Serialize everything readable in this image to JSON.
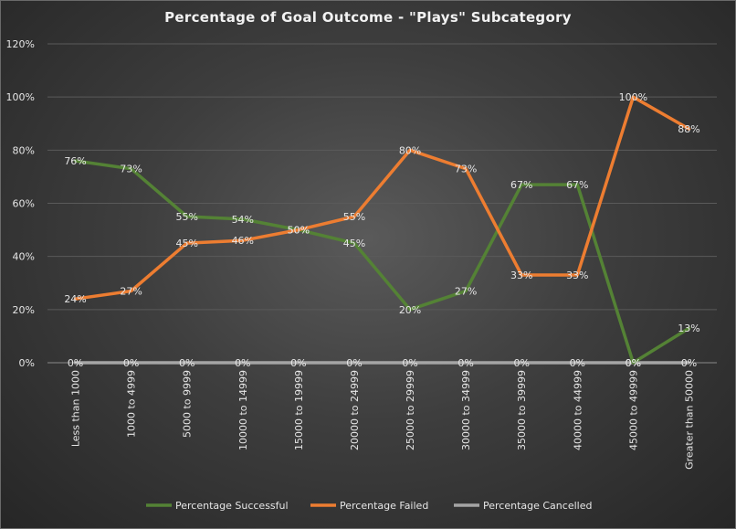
{
  "chart_data": {
    "type": "line",
    "title": "Percentage of Goal Outcome - \"Plays\" Subcategory",
    "xlabel": "",
    "ylabel": "",
    "ylim": [
      0,
      120
    ],
    "yticks": [
      "0%",
      "20%",
      "40%",
      "60%",
      "80%",
      "100%",
      "120%"
    ],
    "categories": [
      "Less than 1000",
      "1000 to 4999",
      "5000 to 9999",
      "10000 to 14999",
      "15000 to 19999",
      "20000 to 24999",
      "25000 to 29999",
      "30000 to 34999",
      "35000 to 39999",
      "40000 to 44999",
      "45000 to 49999",
      "Greater than 50000"
    ],
    "series": [
      {
        "name": "Percentage Successful",
        "color": "#548235",
        "values": [
          76,
          73,
          55,
          54,
          50,
          45,
          20,
          27,
          67,
          67,
          0,
          13
        ],
        "labels": [
          "76%",
          "73%",
          "55%",
          "54%",
          "50%",
          "45%",
          "20%",
          "27%",
          "67%",
          "67%",
          "0%",
          "13%"
        ]
      },
      {
        "name": "Percentage Failed",
        "color": "#ED7D31",
        "values": [
          24,
          27,
          45,
          46,
          50,
          55,
          80,
          73,
          33,
          33,
          100,
          88
        ],
        "labels": [
          "24%",
          "27%",
          "45%",
          "46%",
          "50%",
          "55%",
          "80%",
          "73%",
          "33%",
          "33%",
          "100%",
          "88%"
        ]
      },
      {
        "name": "Percentage Cancelled",
        "color": "#A5A5A5",
        "values": [
          0,
          0,
          0,
          0,
          0,
          0,
          0,
          0,
          0,
          0,
          0,
          0
        ],
        "labels": [
          "0%",
          "0%",
          "0%",
          "0%",
          "0%",
          "0%",
          "0%",
          "0%",
          "0%",
          "0%",
          "0%",
          "0%"
        ]
      }
    ],
    "grid": true,
    "legend_position": "bottom"
  }
}
